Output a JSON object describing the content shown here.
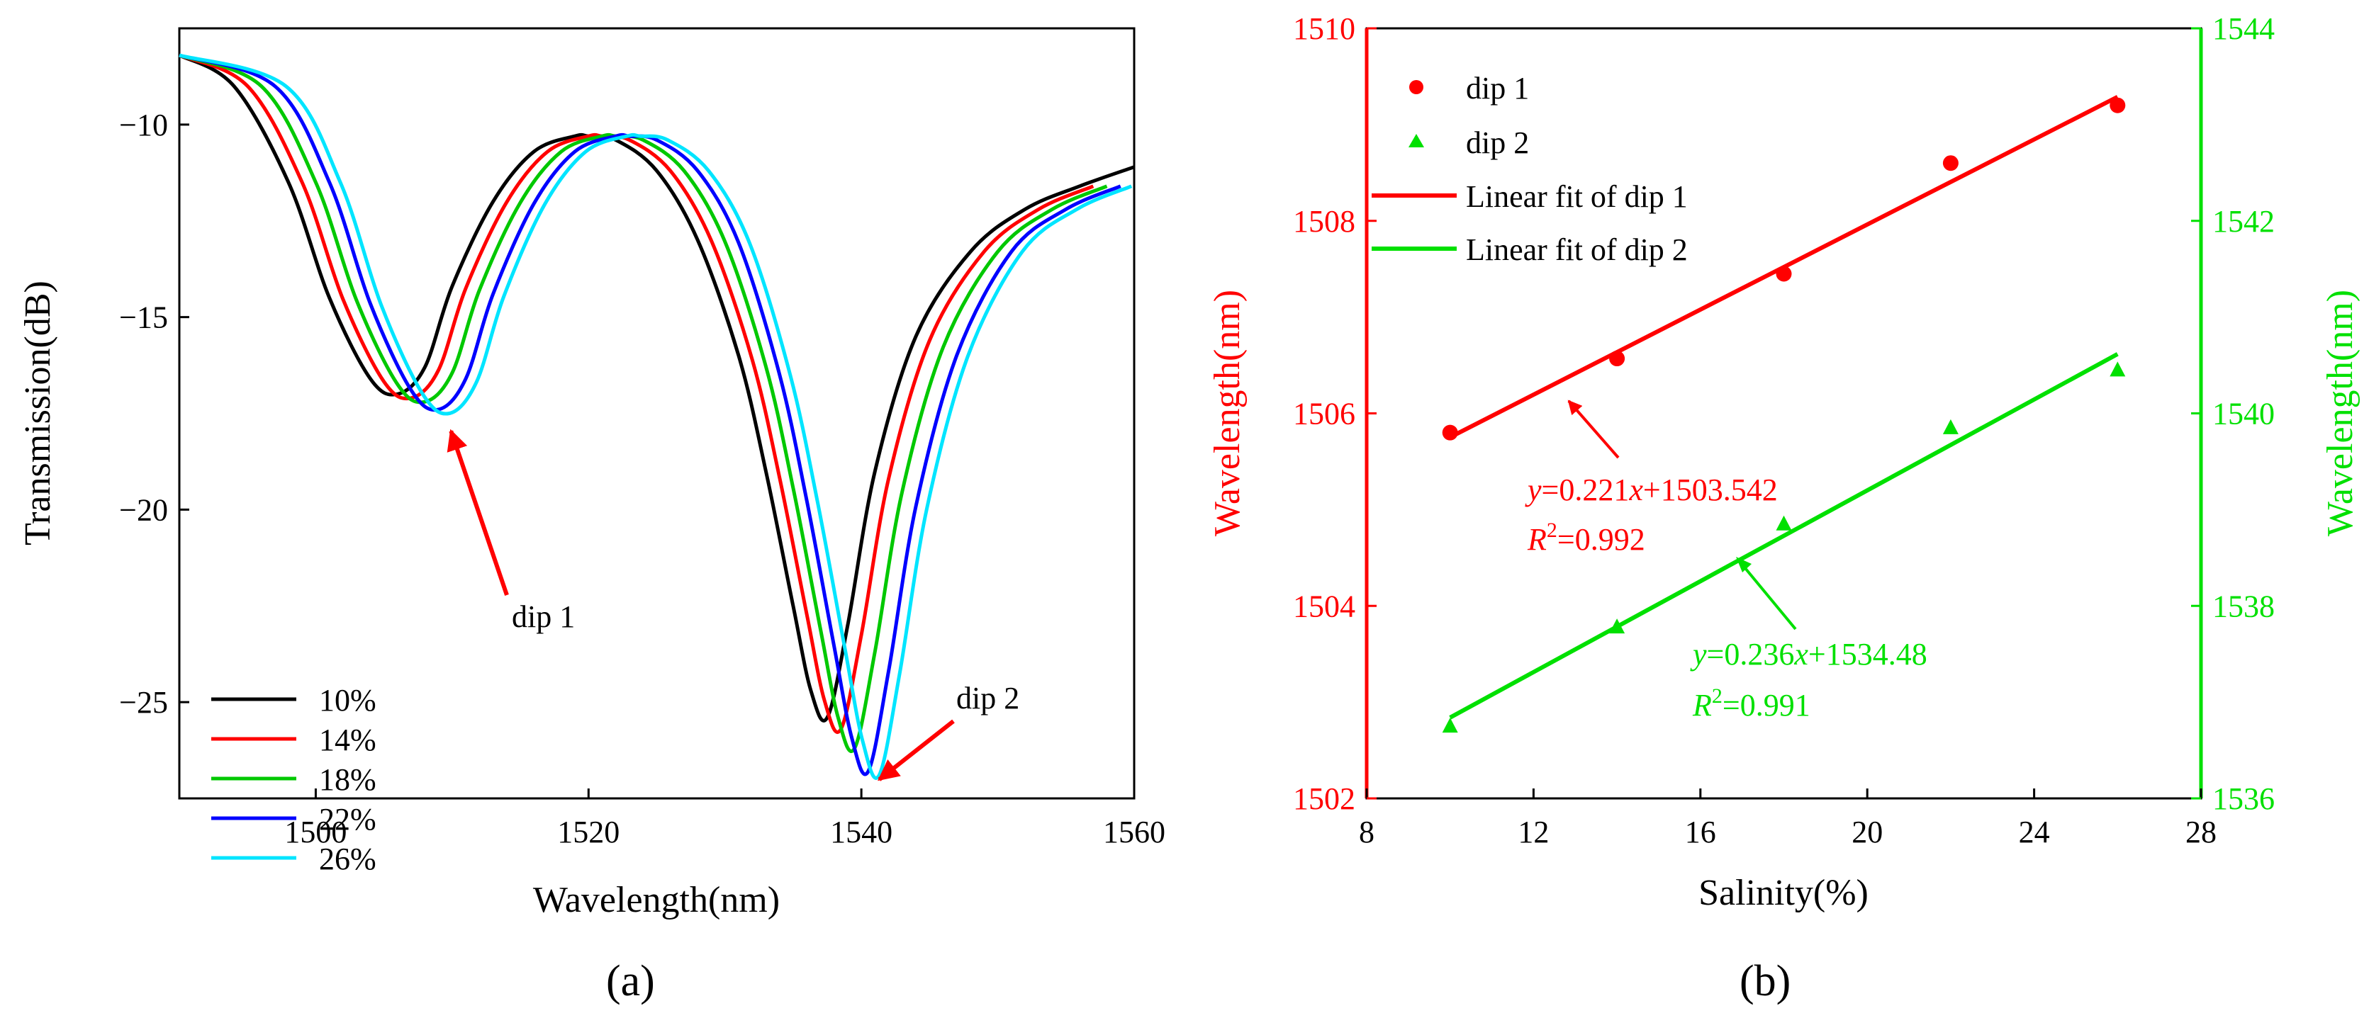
{
  "figure": {
    "panel_a_caption": "(a)",
    "panel_b_caption": "(b)"
  },
  "chart_data": [
    {
      "panel": "a",
      "type": "line",
      "title": "",
      "xlabel": "Wavelength(nm)",
      "ylabel": "Transmission(dB)",
      "xlim": [
        1490,
        1560
      ],
      "ylim": [
        -27.5,
        -7.5
      ],
      "xticks": [
        1500,
        1520,
        1540,
        1560
      ],
      "yticks": [
        -10,
        -15,
        -20,
        -25
      ],
      "grid": false,
      "legend_position": "bottom-left",
      "series": [
        {
          "name": "10%",
          "color": "#000000",
          "shift": 0.0,
          "min1": -17.0,
          "min2": -25.4
        },
        {
          "name": "14%",
          "color": "#ff0000",
          "shift": 1.0,
          "min1": -17.1,
          "min2": -25.7
        },
        {
          "name": "18%",
          "color": "#00c800",
          "shift": 2.0,
          "min1": -17.2,
          "min2": -26.2
        },
        {
          "name": "22%",
          "color": "#0000ff",
          "shift": 3.0,
          "min1": -17.4,
          "min2": -26.8
        },
        {
          "name": "26%",
          "color": "#00e5ff",
          "shift": 3.8,
          "min1": -17.5,
          "min2": -26.9
        }
      ],
      "base_curve": {
        "x": [
          1490,
          1494,
          1498,
          1501,
          1504,
          1506,
          1508,
          1510,
          1513,
          1516,
          1519,
          1520,
          1522,
          1525,
          1528,
          1531,
          1533,
          1535,
          1536.3,
          1537.5,
          1539,
          1541,
          1544,
          1548,
          1552,
          1556,
          1560
        ],
        "y": [
          -8.2,
          -9.0,
          -11.5,
          -14.5,
          -16.6,
          -17.0,
          -16.3,
          -14.2,
          -12.0,
          -10.7,
          -10.3,
          -10.3,
          -10.4,
          -11.2,
          -13.0,
          -16.0,
          -19.0,
          -22.5,
          -24.7,
          -25.4,
          -23.0,
          -19.0,
          -15.5,
          -13.3,
          -12.2,
          -11.6,
          -11.1
        ]
      },
      "annotations": [
        {
          "text": "dip 1",
          "points_to": [
            1509.5,
            -17.5
          ]
        },
        {
          "text": "dip 2",
          "points_to": [
            1541,
            -26.9
          ]
        }
      ]
    },
    {
      "panel": "b",
      "type": "scatter",
      "title": "",
      "xlabel": "Salinity(%)",
      "ylabel_left": "Wavelength(nm)",
      "ylabel_right": "Wavelength(nm)",
      "xlim": [
        8,
        28
      ],
      "ylim_left": [
        1502,
        1510
      ],
      "ylim_right": [
        1536,
        1544
      ],
      "xticks": [
        8,
        12,
        16,
        20,
        24,
        28
      ],
      "yticks_left": [
        1502,
        1504,
        1506,
        1508,
        1510
      ],
      "yticks_right": [
        1536,
        1538,
        1540,
        1542,
        1544
      ],
      "grid": false,
      "legend_position": "top-left",
      "series": [
        {
          "name": "dip 1",
          "axis": "left",
          "marker": "circle",
          "color": "#ff0000",
          "x": [
            10,
            14,
            18,
            22,
            26
          ],
          "y": [
            1505.8,
            1506.57,
            1507.45,
            1508.6,
            1509.2
          ]
        },
        {
          "name": "dip 2",
          "axis": "right",
          "marker": "triangle",
          "color": "#00e000",
          "x": [
            10,
            14,
            18,
            22,
            26
          ],
          "y": [
            1536.75,
            1537.78,
            1538.85,
            1539.85,
            1540.45
          ]
        }
      ],
      "fits": [
        {
          "name": "Linear fit of dip 1",
          "axis": "left",
          "color": "#ff0000",
          "slope": 0.221,
          "intercept": 1503.542,
          "x_range": [
            10,
            26
          ],
          "eq_y": "y",
          "eq_mid": "=0.221",
          "eq_x": "x",
          "eq_tail": "+1503.542",
          "r_label": "R",
          "r_exp": "2",
          "r_value": "=0.992"
        },
        {
          "name": "Linear fit of dip 2",
          "axis": "right",
          "color": "#00e000",
          "slope": 0.236,
          "intercept": 1534.48,
          "x_range": [
            10,
            26
          ],
          "eq_y": "y",
          "eq_mid": "=0.236",
          "eq_x": "x",
          "eq_tail": "+1534.48",
          "r_label": "R",
          "r_exp": "2",
          "r_value": "=0.991"
        }
      ]
    }
  ]
}
